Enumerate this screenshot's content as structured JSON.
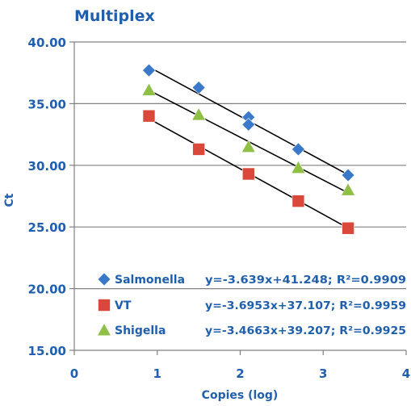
{
  "chart_data": {
    "type": "scatter",
    "title": "Multiplex",
    "xlabel": "Copies (log)",
    "ylabel": "Ct",
    "xlim": [
      0,
      4
    ],
    "ylim": [
      15,
      40
    ],
    "x_ticks": [
      0,
      1,
      2,
      3,
      4
    ],
    "y_ticks": [
      15,
      20,
      25,
      30,
      35,
      40
    ],
    "x_tick_labels": [
      "0",
      "1",
      "2",
      "3",
      "4"
    ],
    "y_tick_labels": [
      "15.00",
      "20.00",
      "25.00",
      "30.00",
      "35.00",
      "40.00"
    ],
    "grid": "horizontal",
    "legend_position": "bottom-left",
    "colors": {
      "text": "#1f5fae",
      "grid": "#808080",
      "trendline": "#000000",
      "salmonella": "#3a78c9",
      "vt": "#d9483b",
      "shigella": "#8fbf45"
    },
    "series": [
      {
        "name": "Salmonella",
        "marker": "diamond",
        "color": "#3a78c9",
        "equation": "y=-3.639x+41.248; R²=0.9909",
        "slope": -3.639,
        "intercept": 41.248,
        "points": [
          {
            "x": 0.9,
            "y": 37.7
          },
          {
            "x": 1.5,
            "y": 36.3
          },
          {
            "x": 2.1,
            "y": 33.9
          },
          {
            "x": 2.1,
            "y": 33.3
          },
          {
            "x": 2.7,
            "y": 31.3
          },
          {
            "x": 3.3,
            "y": 29.2
          }
        ],
        "trend_x": [
          0.9,
          3.3
        ]
      },
      {
        "name": "VT",
        "marker": "square",
        "color": "#d9483b",
        "equation": "y=-3.6953x+37.107; R²=0.9959",
        "slope": -3.6953,
        "intercept": 37.107,
        "points": [
          {
            "x": 0.9,
            "y": 34.0
          },
          {
            "x": 1.5,
            "y": 31.3
          },
          {
            "x": 2.1,
            "y": 29.3
          },
          {
            "x": 2.7,
            "y": 27.1
          },
          {
            "x": 3.3,
            "y": 24.9
          }
        ],
        "trend_x": [
          0.9,
          3.3
        ]
      },
      {
        "name": "Shigella",
        "marker": "triangle",
        "color": "#8fbf45",
        "equation": "y=-3.4663x+39.207; R²=0.9925",
        "slope": -3.4663,
        "intercept": 39.207,
        "points": [
          {
            "x": 0.9,
            "y": 36.1
          },
          {
            "x": 1.5,
            "y": 34.1
          },
          {
            "x": 2.1,
            "y": 31.5
          },
          {
            "x": 2.7,
            "y": 29.8
          },
          {
            "x": 3.3,
            "y": 28.0
          }
        ],
        "trend_x": [
          0.9,
          3.3
        ]
      }
    ]
  }
}
